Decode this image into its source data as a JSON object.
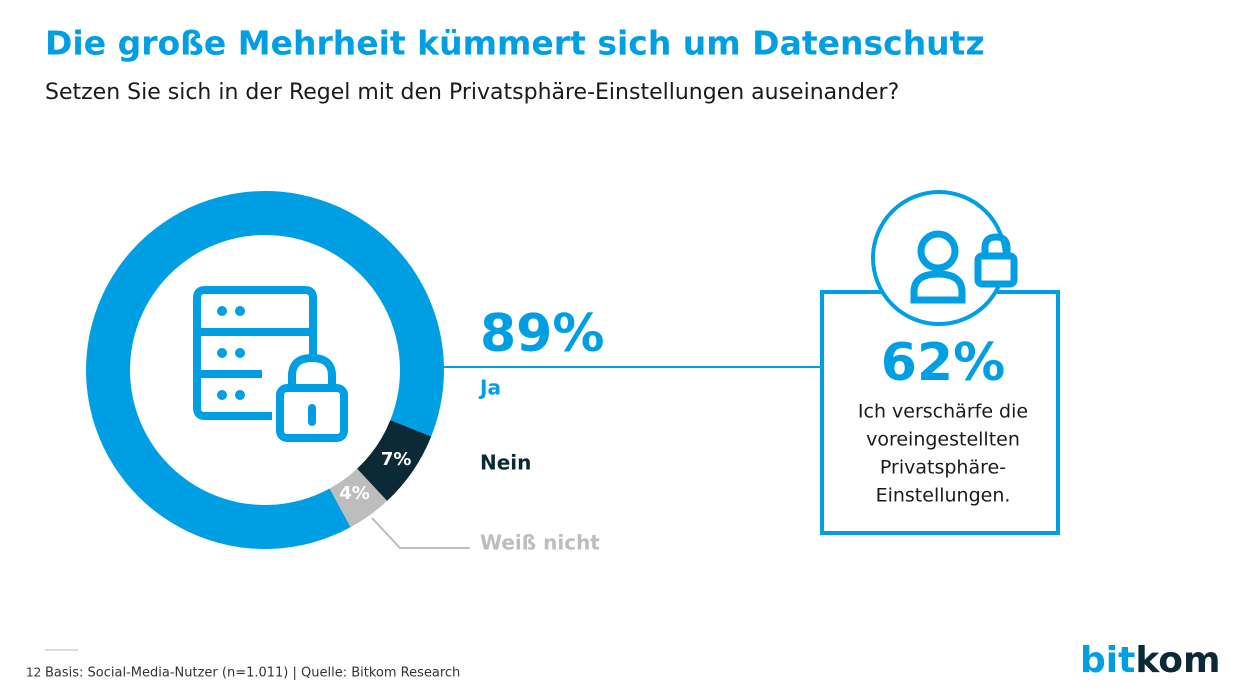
{
  "chart_data": {
    "type": "donut",
    "title": "Die große Mehrheit kümmert sich um Datenschutz",
    "subtitle": "Setzen Sie sich in der Regel mit den Privatsphäre-Einstellungen auseinander?",
    "categories": [
      "Ja",
      "Nein",
      "Weiß nicht"
    ],
    "values": [
      89,
      7,
      4
    ],
    "value_labels": [
      "89%",
      "7%",
      "4%"
    ],
    "colors": [
      "#009fe3",
      "#0b2a36",
      "#bdbdbd"
    ],
    "callout": {
      "label": "62%",
      "text": [
        "Ich verschärfe die",
        "voreingestellten",
        "Privatsphäre-",
        "Einstellungen."
      ]
    }
  },
  "footer": {
    "page": "12",
    "source": "Basis: Social-Media-Nutzer (n=1.011) | Quelle: Bitkom Research"
  },
  "logo": [
    "bit",
    "kom"
  ]
}
